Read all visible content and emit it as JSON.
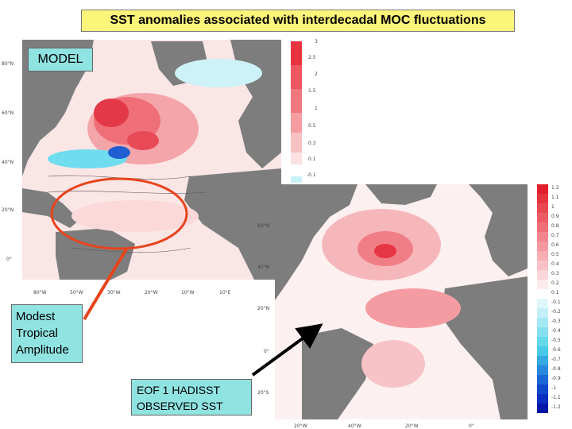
{
  "title": "SST anomalies associated with interdecadal MOC fluctuations",
  "labels": {
    "model": "MODEL",
    "tropical_line1": "Modest",
    "tropical_line2": "Tropical",
    "tropical_line3": "Amplitude",
    "eof_line1": "EOF 1 HADISST",
    "eof_line2": "OBSERVED SST"
  },
  "model_map": {
    "lat_ticks": [
      "80°N",
      "60°N",
      "40°N",
      "20°N",
      "0°"
    ],
    "lon_ticks": [
      "80°W",
      "50°W",
      "30°W",
      "20°W",
      "10°W",
      "10°E"
    ],
    "colorbar_ticks": [
      "3",
      "2.5",
      "2",
      "1.5",
      "1",
      "0.5",
      "0.3",
      "0.1",
      "-0.1"
    ]
  },
  "observed_map": {
    "lat_ticks": [
      "60°N",
      "40°N",
      "20°N",
      "0°",
      "20°S"
    ],
    "lon_ticks": [
      "20°W",
      "40°W",
      "20°W",
      "0°"
    ],
    "colorbar_ticks": [
      "1.2",
      "1.1",
      "1",
      "0.9",
      "0.8",
      "0.7",
      "0.6",
      "0.5",
      "0.4",
      "0.3",
      "0.2",
      "0.1",
      "-0.1",
      "-0.2",
      "-0.3",
      "-0.4",
      "-0.5",
      "-0.6",
      "-0.7",
      "-0.8",
      "-0.9",
      "-1",
      "-1.1",
      "-1.2"
    ]
  },
  "colors": {
    "land": "#7d7d7d",
    "warm": "#ef3e4a",
    "cool": "#3fd0ea",
    "highlight_ring": "#e8441c",
    "arrow_red": "#e8441c",
    "arrow_black": "#000000",
    "title_bg": "#fdf57a",
    "label_bg": "#8fe3e1"
  }
}
